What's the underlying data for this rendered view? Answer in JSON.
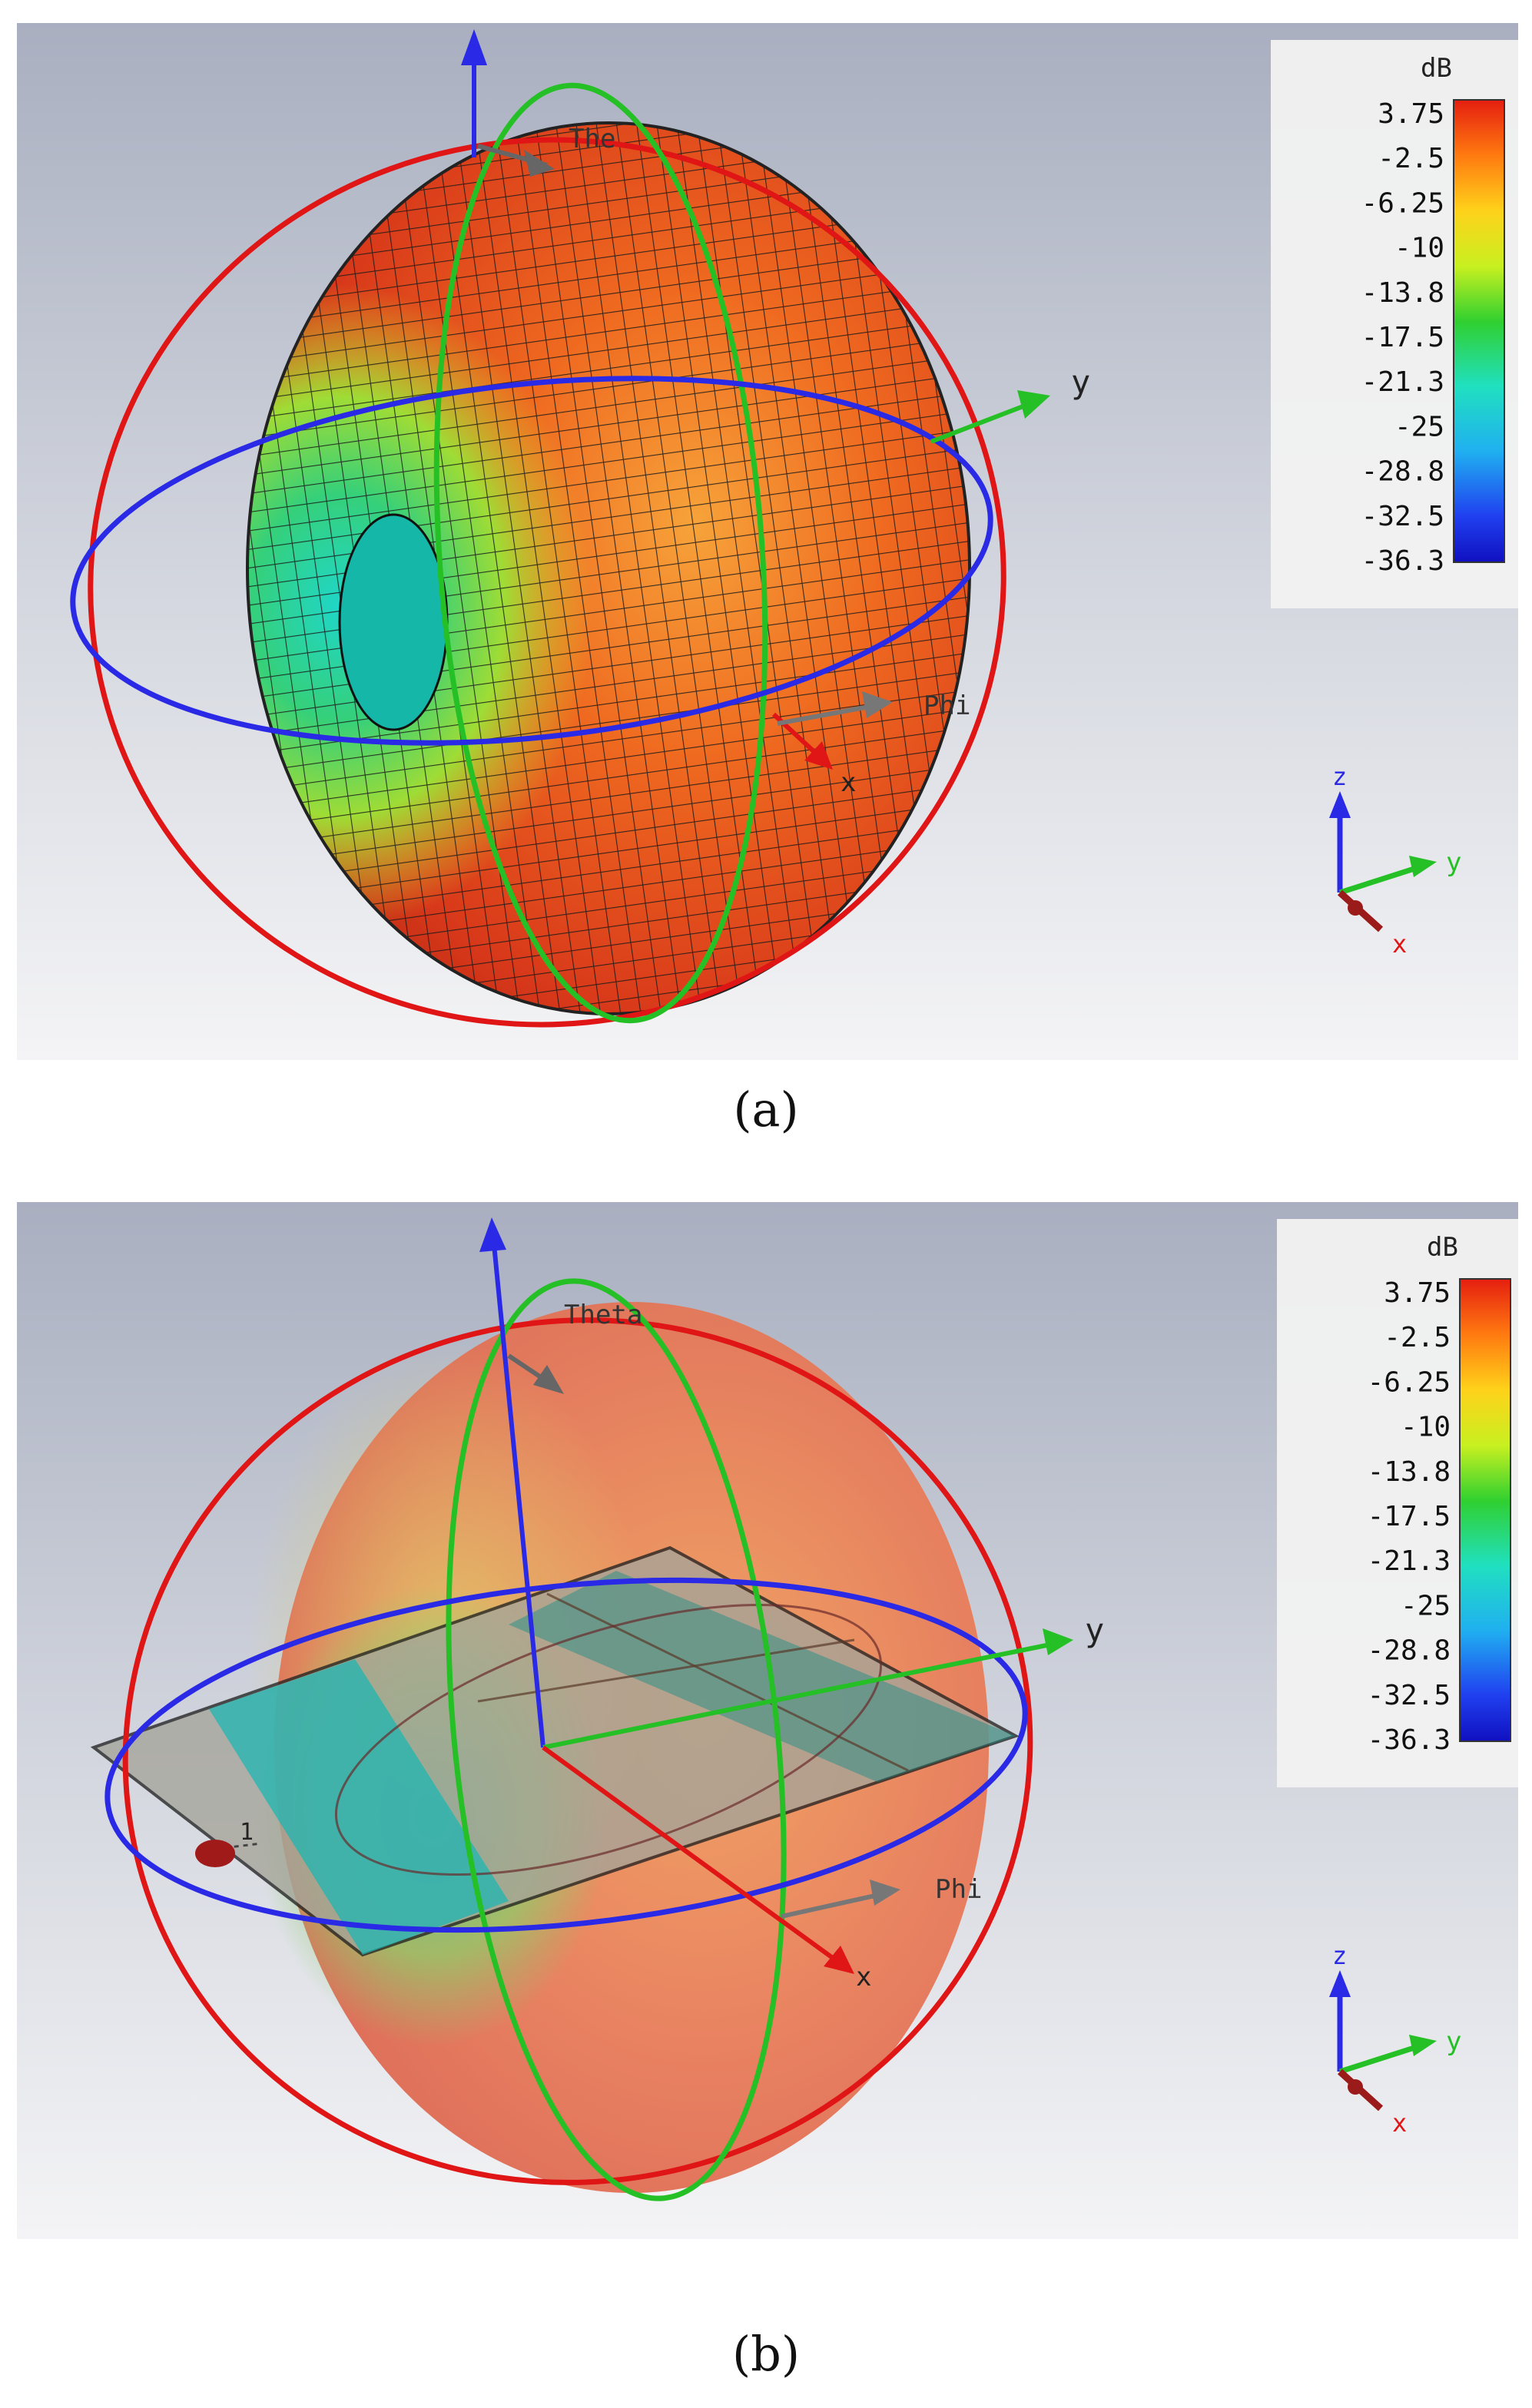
{
  "figures": [
    {
      "caption": "(a)",
      "axis_labels": {
        "y": "y",
        "x": "x",
        "phi": "Phi",
        "theta": "The"
      },
      "triad": {
        "z": "z",
        "y": "y",
        "x": "x"
      },
      "colorbar": {
        "unit": "dB",
        "ticks": [
          "3.75",
          "-2.5",
          "-6.25",
          "-10",
          "-13.8",
          "-17.5",
          "-21.3",
          "-25",
          "-28.8",
          "-32.5",
          "-36.3"
        ]
      }
    },
    {
      "caption": "(b)",
      "axis_labels": {
        "y": "y",
        "x": "x",
        "phi": "Phi",
        "theta": "Theta",
        "port": "1"
      },
      "triad": {
        "z": "z",
        "y": "y",
        "x": "x"
      },
      "colorbar": {
        "unit": "dB",
        "ticks": [
          "3.75",
          "-2.5",
          "-6.25",
          "-10",
          "-13.8",
          "-17.5",
          "-21.3",
          "-25",
          "-28.8",
          "-32.5",
          "-36.3"
        ]
      }
    }
  ],
  "colors": {
    "red_ring": "#e01515",
    "green_ring": "#25c025",
    "blue_ring": "#2a2ae6"
  }
}
